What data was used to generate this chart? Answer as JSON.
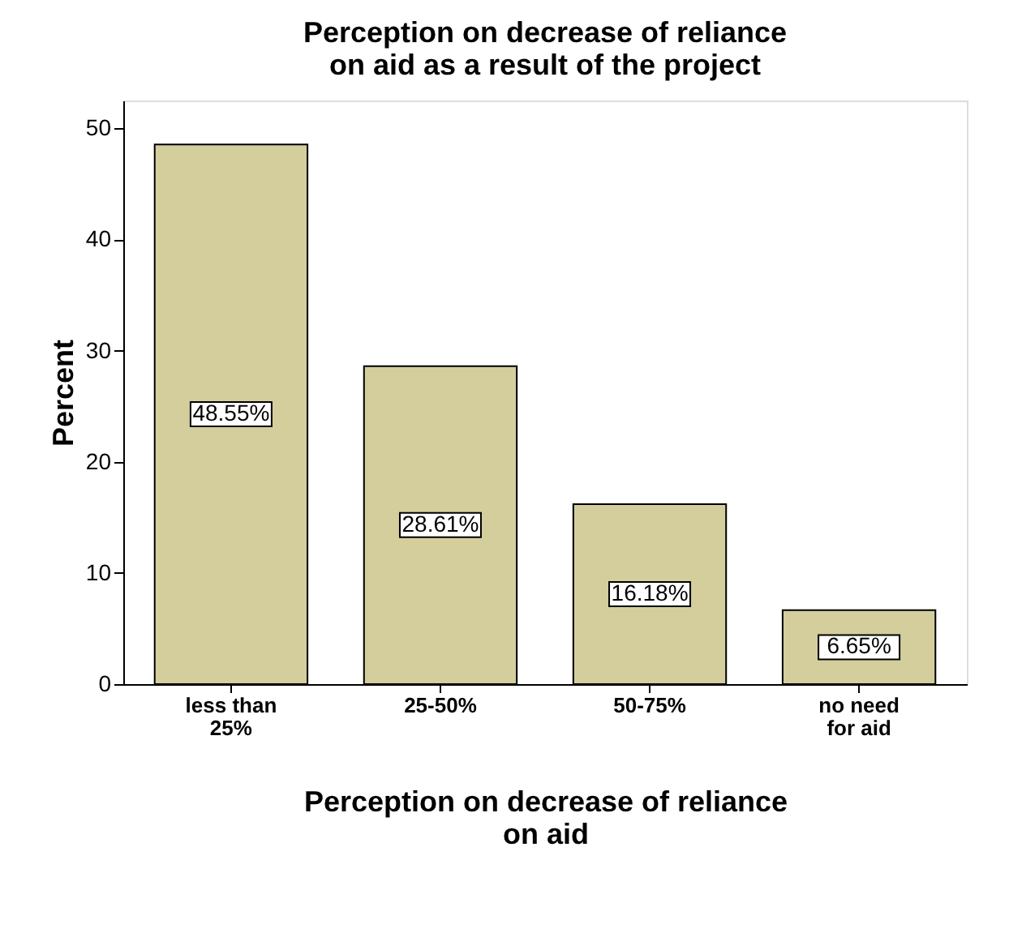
{
  "chart_data": {
    "type": "bar",
    "title": "Perception on decrease of reliance on aid as a result of the project",
    "xlabel": "Perception on decrease of reliance on aid",
    "ylabel": "Percent",
    "categories": [
      "less than 25%",
      "25-50%",
      "50-75%",
      "no need for aid"
    ],
    "values": [
      48.55,
      28.61,
      16.18,
      6.65
    ],
    "value_labels": [
      "48.55%",
      "28.61%",
      "16.18%",
      "6.65%"
    ],
    "color": "#d3ce9c",
    "ylim": [
      0,
      52.5
    ],
    "yticks": [
      0,
      10,
      20,
      30,
      40,
      50
    ],
    "grid": false
  }
}
